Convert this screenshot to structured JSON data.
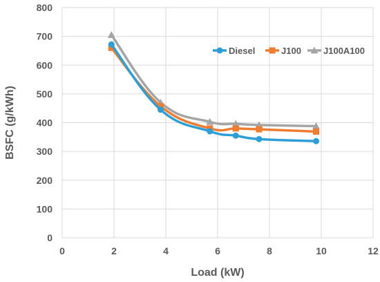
{
  "chart_data": {
    "type": "line",
    "title": "",
    "xlabel": "Load (kW)",
    "ylabel": "BSFC (g/kWh)",
    "xlim": [
      0,
      12
    ],
    "ylim": [
      0,
      800
    ],
    "xticks": [
      0,
      2,
      4,
      6,
      8,
      10,
      12
    ],
    "yticks": [
      0,
      100,
      200,
      300,
      400,
      500,
      600,
      700,
      800
    ],
    "grid": true,
    "legend_position": "top-right",
    "series": [
      {
        "name": "Diesel",
        "color": "#2e9fd6",
        "marker": "circle",
        "x": [
          1.9,
          3.8,
          5.7,
          6.7,
          7.6,
          9.8
        ],
        "y": [
          672,
          445,
          370,
          355,
          343,
          336
        ]
      },
      {
        "name": "J100",
        "color": "#ee7d31",
        "marker": "square",
        "x": [
          1.9,
          3.8,
          5.7,
          6.7,
          7.6,
          9.8
        ],
        "y": [
          660,
          457,
          380,
          380,
          377,
          369
        ]
      },
      {
        "name": "J100A100",
        "color": "#a5a5a5",
        "marker": "triangle",
        "x": [
          1.9,
          3.8,
          5.7,
          6.7,
          7.6,
          9.8
        ],
        "y": [
          705,
          470,
          403,
          396,
          392,
          388
        ]
      }
    ]
  }
}
